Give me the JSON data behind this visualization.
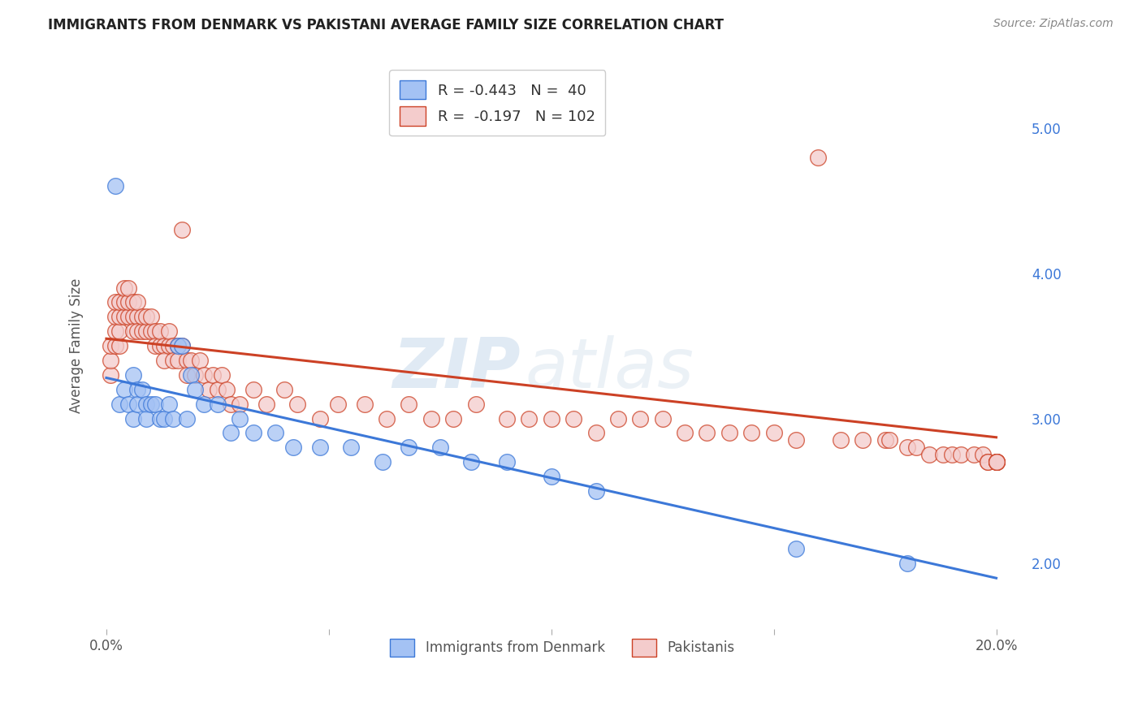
{
  "title": "IMMIGRANTS FROM DENMARK VS PAKISTANI AVERAGE FAMILY SIZE CORRELATION CHART",
  "source": "Source: ZipAtlas.com",
  "ylabel": "Average Family Size",
  "right_yticks": [
    2.0,
    3.0,
    4.0,
    5.0
  ],
  "legend_blue_label": "R = -0.443   N =  40",
  "legend_pink_label": "R =  -0.197   N = 102",
  "legend_bottom_blue": "Immigrants from Denmark",
  "legend_bottom_pink": "Pakistanis",
  "watermark": "ZIPatlas",
  "blue_color": "#a4c2f4",
  "pink_color": "#f4cccc",
  "blue_line_color": "#3c78d8",
  "pink_line_color": "#cc4125",
  "blue_scatter_x": [
    0.002,
    0.003,
    0.004,
    0.005,
    0.006,
    0.006,
    0.007,
    0.007,
    0.008,
    0.009,
    0.009,
    0.01,
    0.011,
    0.012,
    0.013,
    0.014,
    0.015,
    0.016,
    0.017,
    0.018,
    0.019,
    0.02,
    0.022,
    0.025,
    0.028,
    0.03,
    0.033,
    0.038,
    0.042,
    0.048,
    0.055,
    0.062,
    0.068,
    0.075,
    0.082,
    0.09,
    0.1,
    0.11,
    0.155,
    0.18
  ],
  "blue_scatter_y": [
    4.6,
    3.1,
    3.2,
    3.1,
    3.3,
    3.0,
    3.2,
    3.1,
    3.2,
    3.1,
    3.0,
    3.1,
    3.1,
    3.0,
    3.0,
    3.1,
    3.0,
    3.5,
    3.5,
    3.0,
    3.3,
    3.2,
    3.1,
    3.1,
    2.9,
    3.0,
    2.9,
    2.9,
    2.8,
    2.8,
    2.8,
    2.7,
    2.8,
    2.8,
    2.7,
    2.7,
    2.6,
    2.5,
    2.1,
    2.0
  ],
  "pink_scatter_x": [
    0.001,
    0.001,
    0.001,
    0.002,
    0.002,
    0.002,
    0.002,
    0.003,
    0.003,
    0.003,
    0.003,
    0.004,
    0.004,
    0.004,
    0.005,
    0.005,
    0.005,
    0.006,
    0.006,
    0.006,
    0.007,
    0.007,
    0.007,
    0.008,
    0.008,
    0.009,
    0.009,
    0.01,
    0.01,
    0.011,
    0.011,
    0.012,
    0.012,
    0.013,
    0.013,
    0.014,
    0.014,
    0.015,
    0.015,
    0.016,
    0.016,
    0.017,
    0.017,
    0.018,
    0.018,
    0.019,
    0.02,
    0.021,
    0.022,
    0.023,
    0.024,
    0.025,
    0.026,
    0.027,
    0.028,
    0.03,
    0.033,
    0.036,
    0.04,
    0.043,
    0.048,
    0.052,
    0.058,
    0.063,
    0.068,
    0.073,
    0.078,
    0.083,
    0.09,
    0.095,
    0.1,
    0.105,
    0.11,
    0.115,
    0.12,
    0.125,
    0.13,
    0.135,
    0.14,
    0.145,
    0.15,
    0.155,
    0.16,
    0.165,
    0.17,
    0.175,
    0.176,
    0.18,
    0.182,
    0.185,
    0.188,
    0.19,
    0.192,
    0.195,
    0.197,
    0.198,
    0.198,
    0.2,
    0.2,
    0.2,
    0.2,
    0.2
  ],
  "pink_scatter_y": [
    3.3,
    3.4,
    3.5,
    3.5,
    3.6,
    3.7,
    3.8,
    3.5,
    3.6,
    3.7,
    3.8,
    3.7,
    3.8,
    3.9,
    3.7,
    3.8,
    3.9,
    3.7,
    3.8,
    3.6,
    3.7,
    3.8,
    3.6,
    3.6,
    3.7,
    3.6,
    3.7,
    3.6,
    3.7,
    3.6,
    3.5,
    3.5,
    3.6,
    3.5,
    3.4,
    3.5,
    3.6,
    3.5,
    3.4,
    3.5,
    3.4,
    3.5,
    4.3,
    3.4,
    3.3,
    3.4,
    3.3,
    3.4,
    3.3,
    3.2,
    3.3,
    3.2,
    3.3,
    3.2,
    3.1,
    3.1,
    3.2,
    3.1,
    3.2,
    3.1,
    3.0,
    3.1,
    3.1,
    3.0,
    3.1,
    3.0,
    3.0,
    3.1,
    3.0,
    3.0,
    3.0,
    3.0,
    2.9,
    3.0,
    3.0,
    3.0,
    2.9,
    2.9,
    2.9,
    2.9,
    2.9,
    2.85,
    4.8,
    2.85,
    2.85,
    2.85,
    2.85,
    2.8,
    2.8,
    2.75,
    2.75,
    2.75,
    2.75,
    2.75,
    2.75,
    2.7,
    2.7,
    2.7,
    2.7,
    2.7,
    2.7,
    2.7
  ],
  "blue_trend_x": [
    0.0,
    0.2
  ],
  "blue_trend_y": [
    3.28,
    1.9
  ],
  "pink_trend_x": [
    0.0,
    0.2
  ],
  "pink_trend_y": [
    3.55,
    2.87
  ],
  "xlim": [
    -0.002,
    0.207
  ],
  "ylim": [
    1.55,
    5.45
  ],
  "xticks": [
    0.0,
    0.05,
    0.1,
    0.15,
    0.2
  ],
  "xticklabels": [
    "0.0%",
    "",
    "",
    "",
    "20.0%"
  ],
  "background_color": "#ffffff",
  "grid_color": "#cccccc"
}
